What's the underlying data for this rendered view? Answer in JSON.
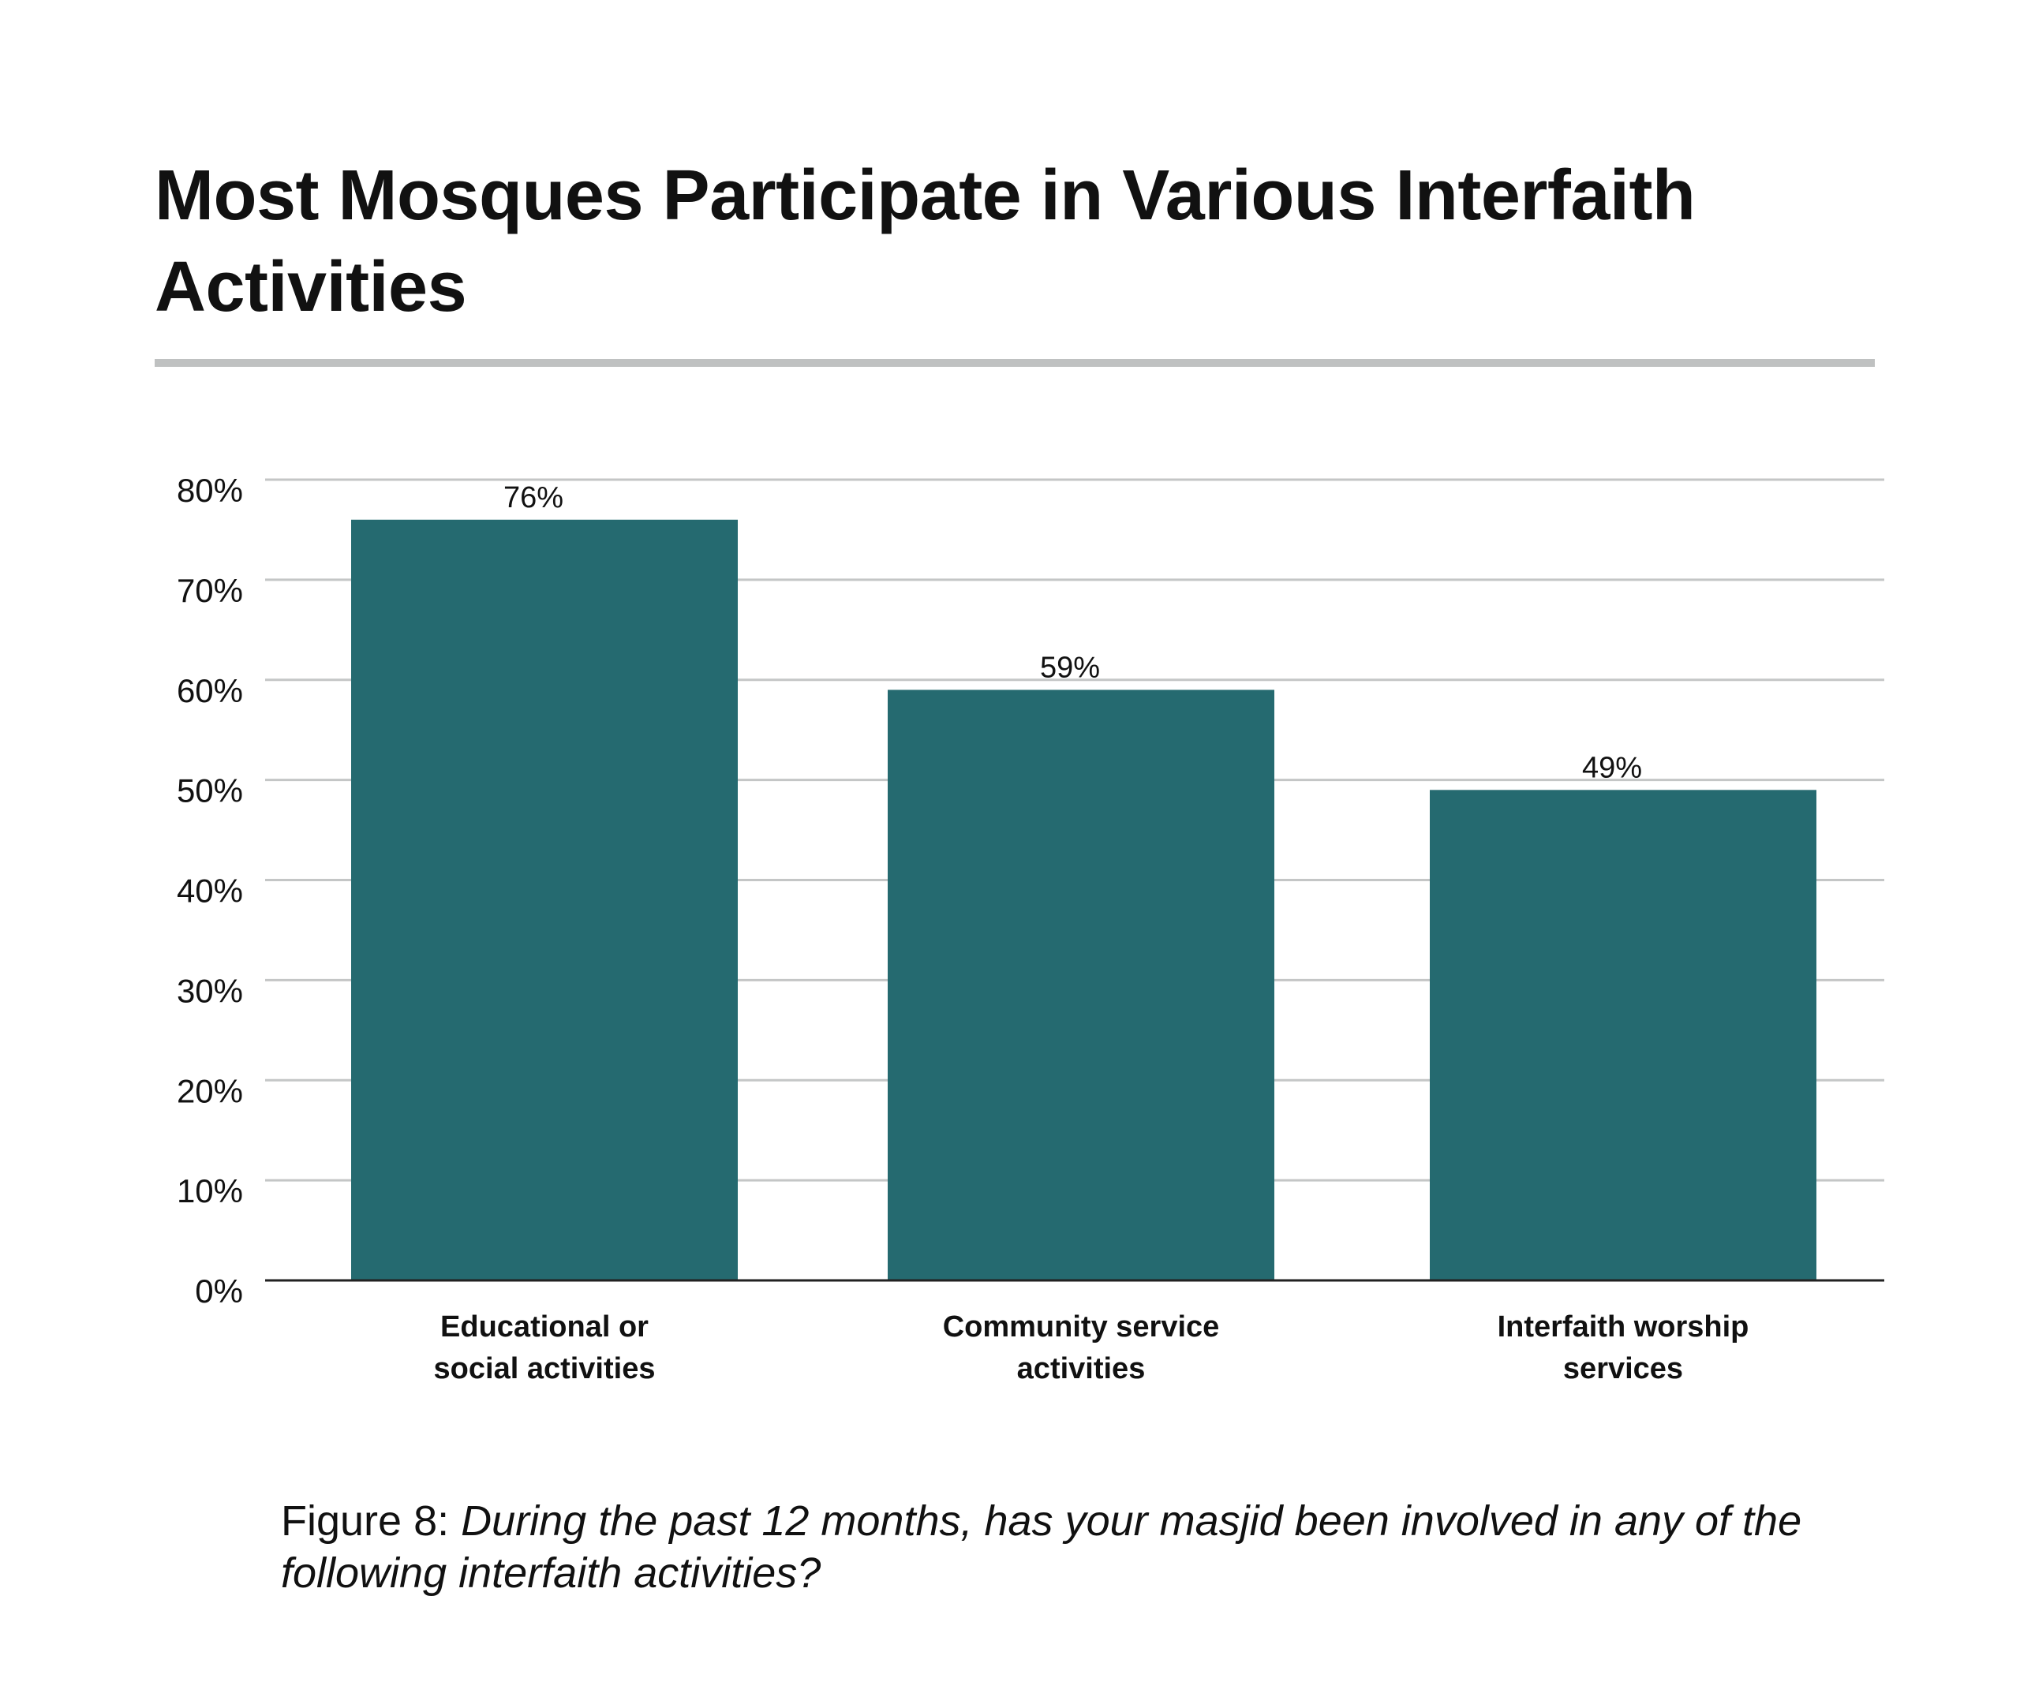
{
  "header": {
    "title": "Most Mosques Participate in Various Interfaith Activities"
  },
  "chart_data": {
    "type": "bar",
    "title": "Most Mosques Participate in Various Interfaith Activities",
    "categories": [
      [
        "Educational or",
        "social activities"
      ],
      [
        "Community service",
        "activities"
      ],
      [
        "Interfaith worship",
        "services"
      ]
    ],
    "values": [
      76,
      59,
      49
    ],
    "data_labels": [
      "76%",
      "59%",
      "49%"
    ],
    "ylim": [
      0,
      80
    ],
    "yticks": [
      0,
      10,
      20,
      30,
      40,
      50,
      60,
      70,
      80
    ],
    "ytick_labels": [
      "0%",
      "10%",
      "20%",
      "30%",
      "40%",
      "50%",
      "60%",
      "70%",
      "80%"
    ],
    "xlabel": "",
    "ylabel": "",
    "grid": true,
    "legend": "none",
    "bar_color": "#256a70",
    "grid_color": "#c4c6c6",
    "axis_color": "#222222"
  },
  "caption": {
    "label": "Figure 8",
    "separator": ": ",
    "text": "During the past 12 months, has your masjid been involved in any of the following interfaith activities?"
  }
}
